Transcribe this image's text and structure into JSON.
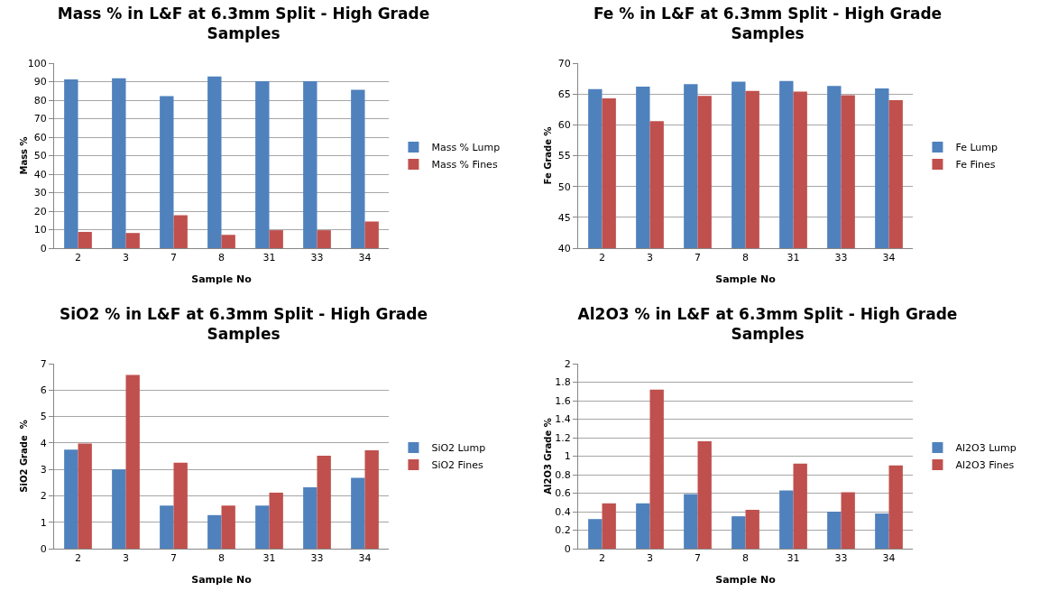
{
  "chart_data": [
    {
      "type": "bar",
      "title": "Mass % in L&F at 6.3mm Split - High Grade Samples",
      "xlabel": "Sample No",
      "ylabel": "Mass %",
      "categories": [
        "2",
        "3",
        "7",
        "8",
        "31",
        "33",
        "34"
      ],
      "series": [
        {
          "name": "Mass % Lump",
          "color": "#4f81bd",
          "values": [
            91.2,
            91.8,
            82.2,
            92.8,
            90.3,
            90.3,
            85.6
          ]
        },
        {
          "name": "Mass % Fines",
          "color": "#c0504d",
          "values": [
            8.8,
            8.2,
            17.8,
            7.2,
            9.7,
            9.7,
            14.4
          ]
        }
      ],
      "ylim": [
        0,
        100
      ],
      "yticks": [
        0,
        10,
        20,
        30,
        40,
        50,
        60,
        70,
        80,
        90,
        100
      ],
      "grid": "y",
      "legend": "right"
    },
    {
      "type": "bar",
      "title": "Fe % in L&F at 6.3mm Split - High Grade Samples",
      "xlabel": "Sample No",
      "ylabel": "Fe Grade %",
      "categories": [
        "2",
        "3",
        "7",
        "8",
        "31",
        "33",
        "34"
      ],
      "series": [
        {
          "name": "Fe Lump",
          "color": "#4f81bd",
          "values": [
            65.8,
            66.2,
            66.6,
            67.0,
            67.1,
            66.3,
            65.9
          ]
        },
        {
          "name": "Fe Fines",
          "color": "#c0504d",
          "values": [
            64.3,
            60.6,
            64.7,
            65.5,
            65.4,
            64.8,
            64.0
          ]
        }
      ],
      "ylim": [
        40,
        70
      ],
      "yticks": [
        40,
        45,
        50,
        55,
        60,
        65,
        70
      ],
      "grid": "y",
      "legend": "right"
    },
    {
      "type": "bar",
      "title": "SiO2 % in L&F at 6.3mm Split - High Grade Samples",
      "xlabel": "Sample No",
      "ylabel": "SiO2 Grade  %",
      "categories": [
        "2",
        "3",
        "7",
        "8",
        "31",
        "33",
        "34"
      ],
      "series": [
        {
          "name": "SiO2 Lump",
          "color": "#4f81bd",
          "values": [
            3.75,
            3.0,
            1.63,
            1.27,
            1.63,
            2.32,
            2.68
          ]
        },
        {
          "name": "SiO2 Fines",
          "color": "#c0504d",
          "values": [
            3.98,
            6.57,
            3.25,
            1.63,
            2.12,
            3.52,
            3.72
          ]
        }
      ],
      "ylim": [
        0,
        7
      ],
      "yticks": [
        0,
        1,
        2,
        3,
        4,
        5,
        6,
        7
      ],
      "grid": "y",
      "legend": "right"
    },
    {
      "type": "bar",
      "title": "Al2O3 % in L&F at 6.3mm Split - High Grade Samples",
      "xlabel": "Sample No",
      "ylabel": "Al2O3 Grade %",
      "categories": [
        "2",
        "3",
        "7",
        "8",
        "31",
        "33",
        "34"
      ],
      "series": [
        {
          "name": "Al2O3 Lump",
          "color": "#4f81bd",
          "values": [
            0.32,
            0.49,
            0.59,
            0.35,
            0.63,
            0.4,
            0.38
          ]
        },
        {
          "name": "Al2O3 Fines",
          "color": "#c0504d",
          "values": [
            0.49,
            1.72,
            1.16,
            0.42,
            0.92,
            0.61,
            0.9
          ]
        }
      ],
      "ylim": [
        0,
        2
      ],
      "yticks": [
        0,
        0.2,
        0.4,
        0.6,
        0.8,
        1,
        1.2,
        1.4,
        1.6,
        1.8,
        2
      ],
      "grid": "y",
      "legend": "right"
    }
  ]
}
